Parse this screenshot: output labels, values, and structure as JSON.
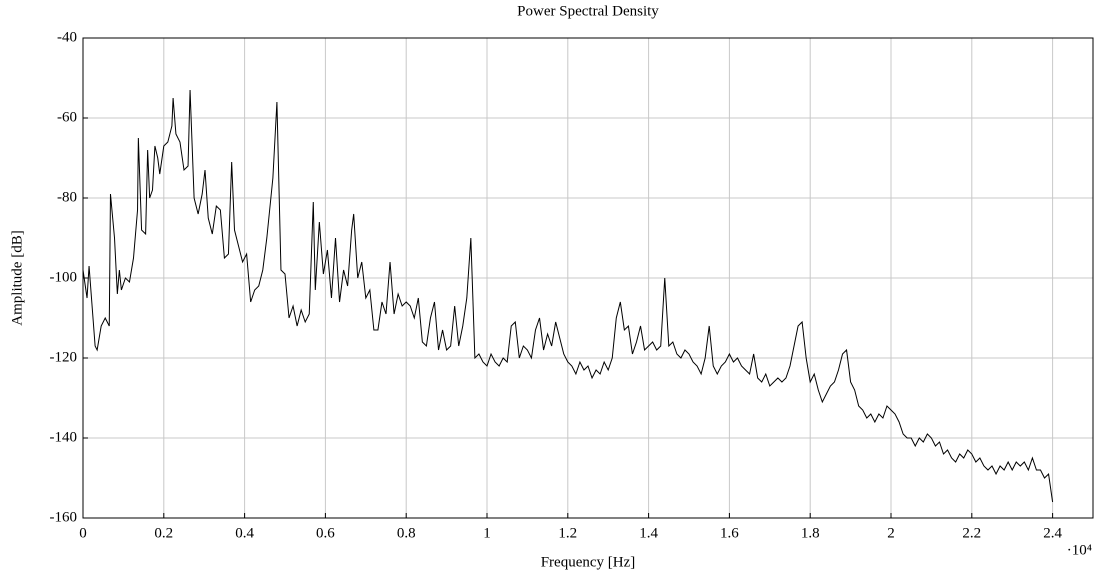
{
  "chart_data": {
    "type": "line",
    "title": "Power Spectral Density",
    "xlabel": "Frequency [Hz]",
    "ylabel": "Amplitude [dB]",
    "x_multiplier": "·10⁴",
    "color": "#000000",
    "grid": true,
    "xlim": [
      0,
      25000
    ],
    "ylim": [
      -160,
      -40
    ],
    "xticks": [
      {
        "value": 0,
        "label": "0"
      },
      {
        "value": 2000,
        "label": "0.2"
      },
      {
        "value": 4000,
        "label": "0.4"
      },
      {
        "value": 6000,
        "label": "0.6"
      },
      {
        "value": 8000,
        "label": "0.8"
      },
      {
        "value": 10000,
        "label": "1"
      },
      {
        "value": 12000,
        "label": "1.2"
      },
      {
        "value": 14000,
        "label": "1.4"
      },
      {
        "value": 16000,
        "label": "1.6"
      },
      {
        "value": 18000,
        "label": "1.8"
      },
      {
        "value": 20000,
        "label": "2"
      },
      {
        "value": 22000,
        "label": "2.2"
      },
      {
        "value": 24000,
        "label": "2.4"
      }
    ],
    "yticks": [
      -160,
      -140,
      -120,
      -100,
      -80,
      -60,
      -40
    ],
    "x": [
      0,
      100,
      150,
      300,
      350,
      450,
      550,
      650,
      680,
      780,
      850,
      900,
      950,
      1050,
      1150,
      1250,
      1350,
      1370,
      1450,
      1550,
      1600,
      1650,
      1720,
      1780,
      1850,
      1900,
      2000,
      2100,
      2200,
      2230,
      2300,
      2400,
      2500,
      2600,
      2650,
      2750,
      2850,
      2950,
      3020,
      3100,
      3200,
      3300,
      3400,
      3500,
      3600,
      3680,
      3750,
      3850,
      3950,
      4050,
      4150,
      4250,
      4350,
      4450,
      4550,
      4700,
      4800,
      4900,
      5000,
      5100,
      5200,
      5300,
      5400,
      5500,
      5600,
      5700,
      5750,
      5850,
      5950,
      6050,
      6150,
      6250,
      6350,
      6450,
      6550,
      6650,
      6700,
      6800,
      6900,
      7000,
      7100,
      7200,
      7300,
      7400,
      7500,
      7600,
      7700,
      7800,
      7900,
      8000,
      8100,
      8200,
      8300,
      8400,
      8500,
      8600,
      8700,
      8800,
      8900,
      9000,
      9100,
      9200,
      9300,
      9400,
      9500,
      9600,
      9700,
      9800,
      9900,
      10000,
      10100,
      10200,
      10300,
      10400,
      10500,
      10600,
      10700,
      10800,
      10900,
      11000,
      11100,
      11200,
      11300,
      11400,
      11500,
      11600,
      11700,
      11800,
      11900,
      12000,
      12100,
      12200,
      12300,
      12400,
      12500,
      12600,
      12700,
      12800,
      12900,
      13000,
      13100,
      13200,
      13300,
      13400,
      13500,
      13600,
      13700,
      13800,
      13900,
      14000,
      14100,
      14200,
      14300,
      14400,
      14500,
      14600,
      14700,
      14800,
      14900,
      15000,
      15100,
      15200,
      15300,
      15400,
      15500,
      15600,
      15700,
      15800,
      15900,
      16000,
      16100,
      16200,
      16300,
      16400,
      16500,
      16600,
      16700,
      16800,
      16900,
      17000,
      17100,
      17200,
      17300,
      17400,
      17500,
      17600,
      17700,
      17800,
      17900,
      18000,
      18100,
      18200,
      18300,
      18400,
      18500,
      18600,
      18700,
      18800,
      18900,
      19000,
      19100,
      19200,
      19300,
      19400,
      19500,
      19600,
      19700,
      19800,
      19900,
      20000,
      20100,
      20200,
      20300,
      20400,
      20500,
      20600,
      20700,
      20800,
      20900,
      21000,
      21100,
      21200,
      21300,
      21400,
      21500,
      21600,
      21700,
      21800,
      21900,
      22000,
      22100,
      22200,
      22300,
      22400,
      22500,
      22600,
      22700,
      22800,
      22900,
      23000,
      23100,
      23200,
      23300,
      23400,
      23500,
      23600,
      23700,
      23800,
      23900,
      24000
    ],
    "values": [
      -98,
      -105,
      -97,
      -117,
      -118,
      -112,
      -110,
      -112,
      -79,
      -90,
      -104,
      -98,
      -103,
      -100,
      -101,
      -95,
      -83,
      -65,
      -88,
      -89,
      -68,
      -80,
      -78,
      -67,
      -70,
      -74,
      -67,
      -66,
      -62,
      -55,
      -64,
      -66,
      -73,
      -72,
      -53,
      -80,
      -84,
      -79,
      -73,
      -85,
      -89,
      -82,
      -83,
      -95,
      -94,
      -71,
      -88,
      -92,
      -96,
      -94,
      -106,
      -103,
      -102,
      -98,
      -90,
      -75,
      -56,
      -98,
      -99,
      -110,
      -107,
      -112,
      -108,
      -111,
      -109,
      -81,
      -103,
      -86,
      -99,
      -93,
      -105,
      -90,
      -106,
      -98,
      -102,
      -88,
      -84,
      -100,
      -96,
      -105,
      -103,
      -113,
      -113,
      -106,
      -109,
      -96,
      -109,
      -104,
      -107,
      -106,
      -107,
      -110,
      -105,
      -116,
      -117,
      -110,
      -106,
      -118,
      -113,
      -118,
      -117,
      -107,
      -117,
      -112,
      -105,
      -90,
      -120,
      -119,
      -121,
      -122,
      -119,
      -121,
      -122,
      -120,
      -121,
      -112,
      -111,
      -120,
      -117,
      -118,
      -120,
      -113,
      -110,
      -118,
      -114,
      -117,
      -111,
      -115,
      -119,
      -121,
      -122,
      -124,
      -121,
      -123,
      -122,
      -125,
      -123,
      -124,
      -121,
      -123,
      -120,
      -110,
      -106,
      -113,
      -112,
      -119,
      -116,
      -112,
      -118,
      -117,
      -116,
      -118,
      -117,
      -100,
      -117,
      -116,
      -119,
      -120,
      -118,
      -119,
      -121,
      -122,
      -124,
      -120,
      -112,
      -122,
      -124,
      -122,
      -121,
      -119,
      -121,
      -120,
      -122,
      -123,
      -124,
      -119,
      -125,
      -126,
      -124,
      -127,
      -126,
      -125,
      -126,
      -125,
      -122,
      -117,
      -112,
      -111,
      -120,
      -126,
      -124,
      -128,
      -131,
      -129,
      -127,
      -126,
      -123,
      -119,
      -118,
      -126,
      -128,
      -132,
      -133,
      -135,
      -134,
      -136,
      -134,
      -135,
      -132,
      -133,
      -134,
      -136,
      -139,
      -140,
      -140,
      -142,
      -140,
      -141,
      -139,
      -140,
      -142,
      -141,
      -144,
      -143,
      -145,
      -146,
      -144,
      -145,
      -143,
      -144,
      -146,
      -145,
      -147,
      -148,
      -147,
      -149,
      -147,
      -148,
      -146,
      -148,
      -146,
      -147,
      -146,
      -148,
      -145,
      -148,
      -148,
      -150,
      -149,
      -156
    ]
  }
}
